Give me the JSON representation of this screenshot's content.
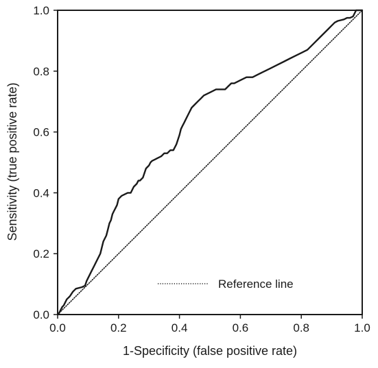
{
  "chart_data": {
    "type": "line",
    "title": "",
    "xlabel": "1-Specificity (false positive rate)",
    "ylabel": "Sensitivity (true positive rate)",
    "xlim": [
      0,
      1
    ],
    "ylim": [
      0,
      1
    ],
    "x_ticks": [
      "0.0",
      "0.2",
      "0.4",
      "0.6",
      "0.8",
      "1.0"
    ],
    "y_ticks": [
      "0.0",
      "0.2",
      "0.4",
      "0.6",
      "0.8",
      "1.0"
    ],
    "grid": false,
    "legend_position": "bottom-right",
    "series": [
      {
        "name": "",
        "style": "solid",
        "color": "#1a1a1a",
        "x": [
          0.0,
          0.005,
          0.01,
          0.015,
          0.02,
          0.03,
          0.04,
          0.05,
          0.06,
          0.08,
          0.09,
          0.095,
          0.1,
          0.105,
          0.11,
          0.12,
          0.13,
          0.14,
          0.145,
          0.15,
          0.155,
          0.16,
          0.165,
          0.17,
          0.175,
          0.18,
          0.185,
          0.19,
          0.195,
          0.2,
          0.21,
          0.22,
          0.23,
          0.24,
          0.25,
          0.26,
          0.265,
          0.27,
          0.28,
          0.29,
          0.3,
          0.305,
          0.31,
          0.32,
          0.33,
          0.34,
          0.35,
          0.36,
          0.37,
          0.38,
          0.39,
          0.4,
          0.405,
          0.41,
          0.415,
          0.42,
          0.43,
          0.44,
          0.45,
          0.46,
          0.47,
          0.48,
          0.5,
          0.52,
          0.55,
          0.56,
          0.57,
          0.58,
          0.6,
          0.62,
          0.64,
          0.66,
          0.68,
          0.7,
          0.72,
          0.74,
          0.76,
          0.78,
          0.8,
          0.82,
          0.84,
          0.86,
          0.87,
          0.88,
          0.89,
          0.9,
          0.91,
          0.92,
          0.94,
          0.95,
          0.955,
          0.96,
          0.97,
          0.98,
          1.0
        ],
        "y": [
          0.0,
          0.005,
          0.015,
          0.025,
          0.03,
          0.05,
          0.06,
          0.075,
          0.085,
          0.09,
          0.095,
          0.11,
          0.12,
          0.13,
          0.14,
          0.16,
          0.18,
          0.2,
          0.22,
          0.24,
          0.25,
          0.26,
          0.28,
          0.3,
          0.31,
          0.33,
          0.34,
          0.35,
          0.36,
          0.38,
          0.39,
          0.395,
          0.4,
          0.4,
          0.42,
          0.43,
          0.44,
          0.44,
          0.45,
          0.48,
          0.49,
          0.5,
          0.505,
          0.51,
          0.515,
          0.52,
          0.53,
          0.53,
          0.54,
          0.54,
          0.56,
          0.59,
          0.61,
          0.62,
          0.63,
          0.64,
          0.66,
          0.68,
          0.69,
          0.7,
          0.71,
          0.72,
          0.73,
          0.74,
          0.74,
          0.75,
          0.76,
          0.76,
          0.77,
          0.78,
          0.78,
          0.79,
          0.8,
          0.81,
          0.82,
          0.83,
          0.84,
          0.85,
          0.86,
          0.87,
          0.89,
          0.91,
          0.92,
          0.93,
          0.94,
          0.95,
          0.96,
          0.965,
          0.97,
          0.975,
          0.975,
          0.975,
          0.98,
          1.0,
          1.0
        ]
      },
      {
        "name": "Reference line",
        "style": "dotted",
        "color": "#1a1a1a",
        "x": [
          0,
          1
        ],
        "y": [
          0,
          1
        ]
      }
    ]
  }
}
